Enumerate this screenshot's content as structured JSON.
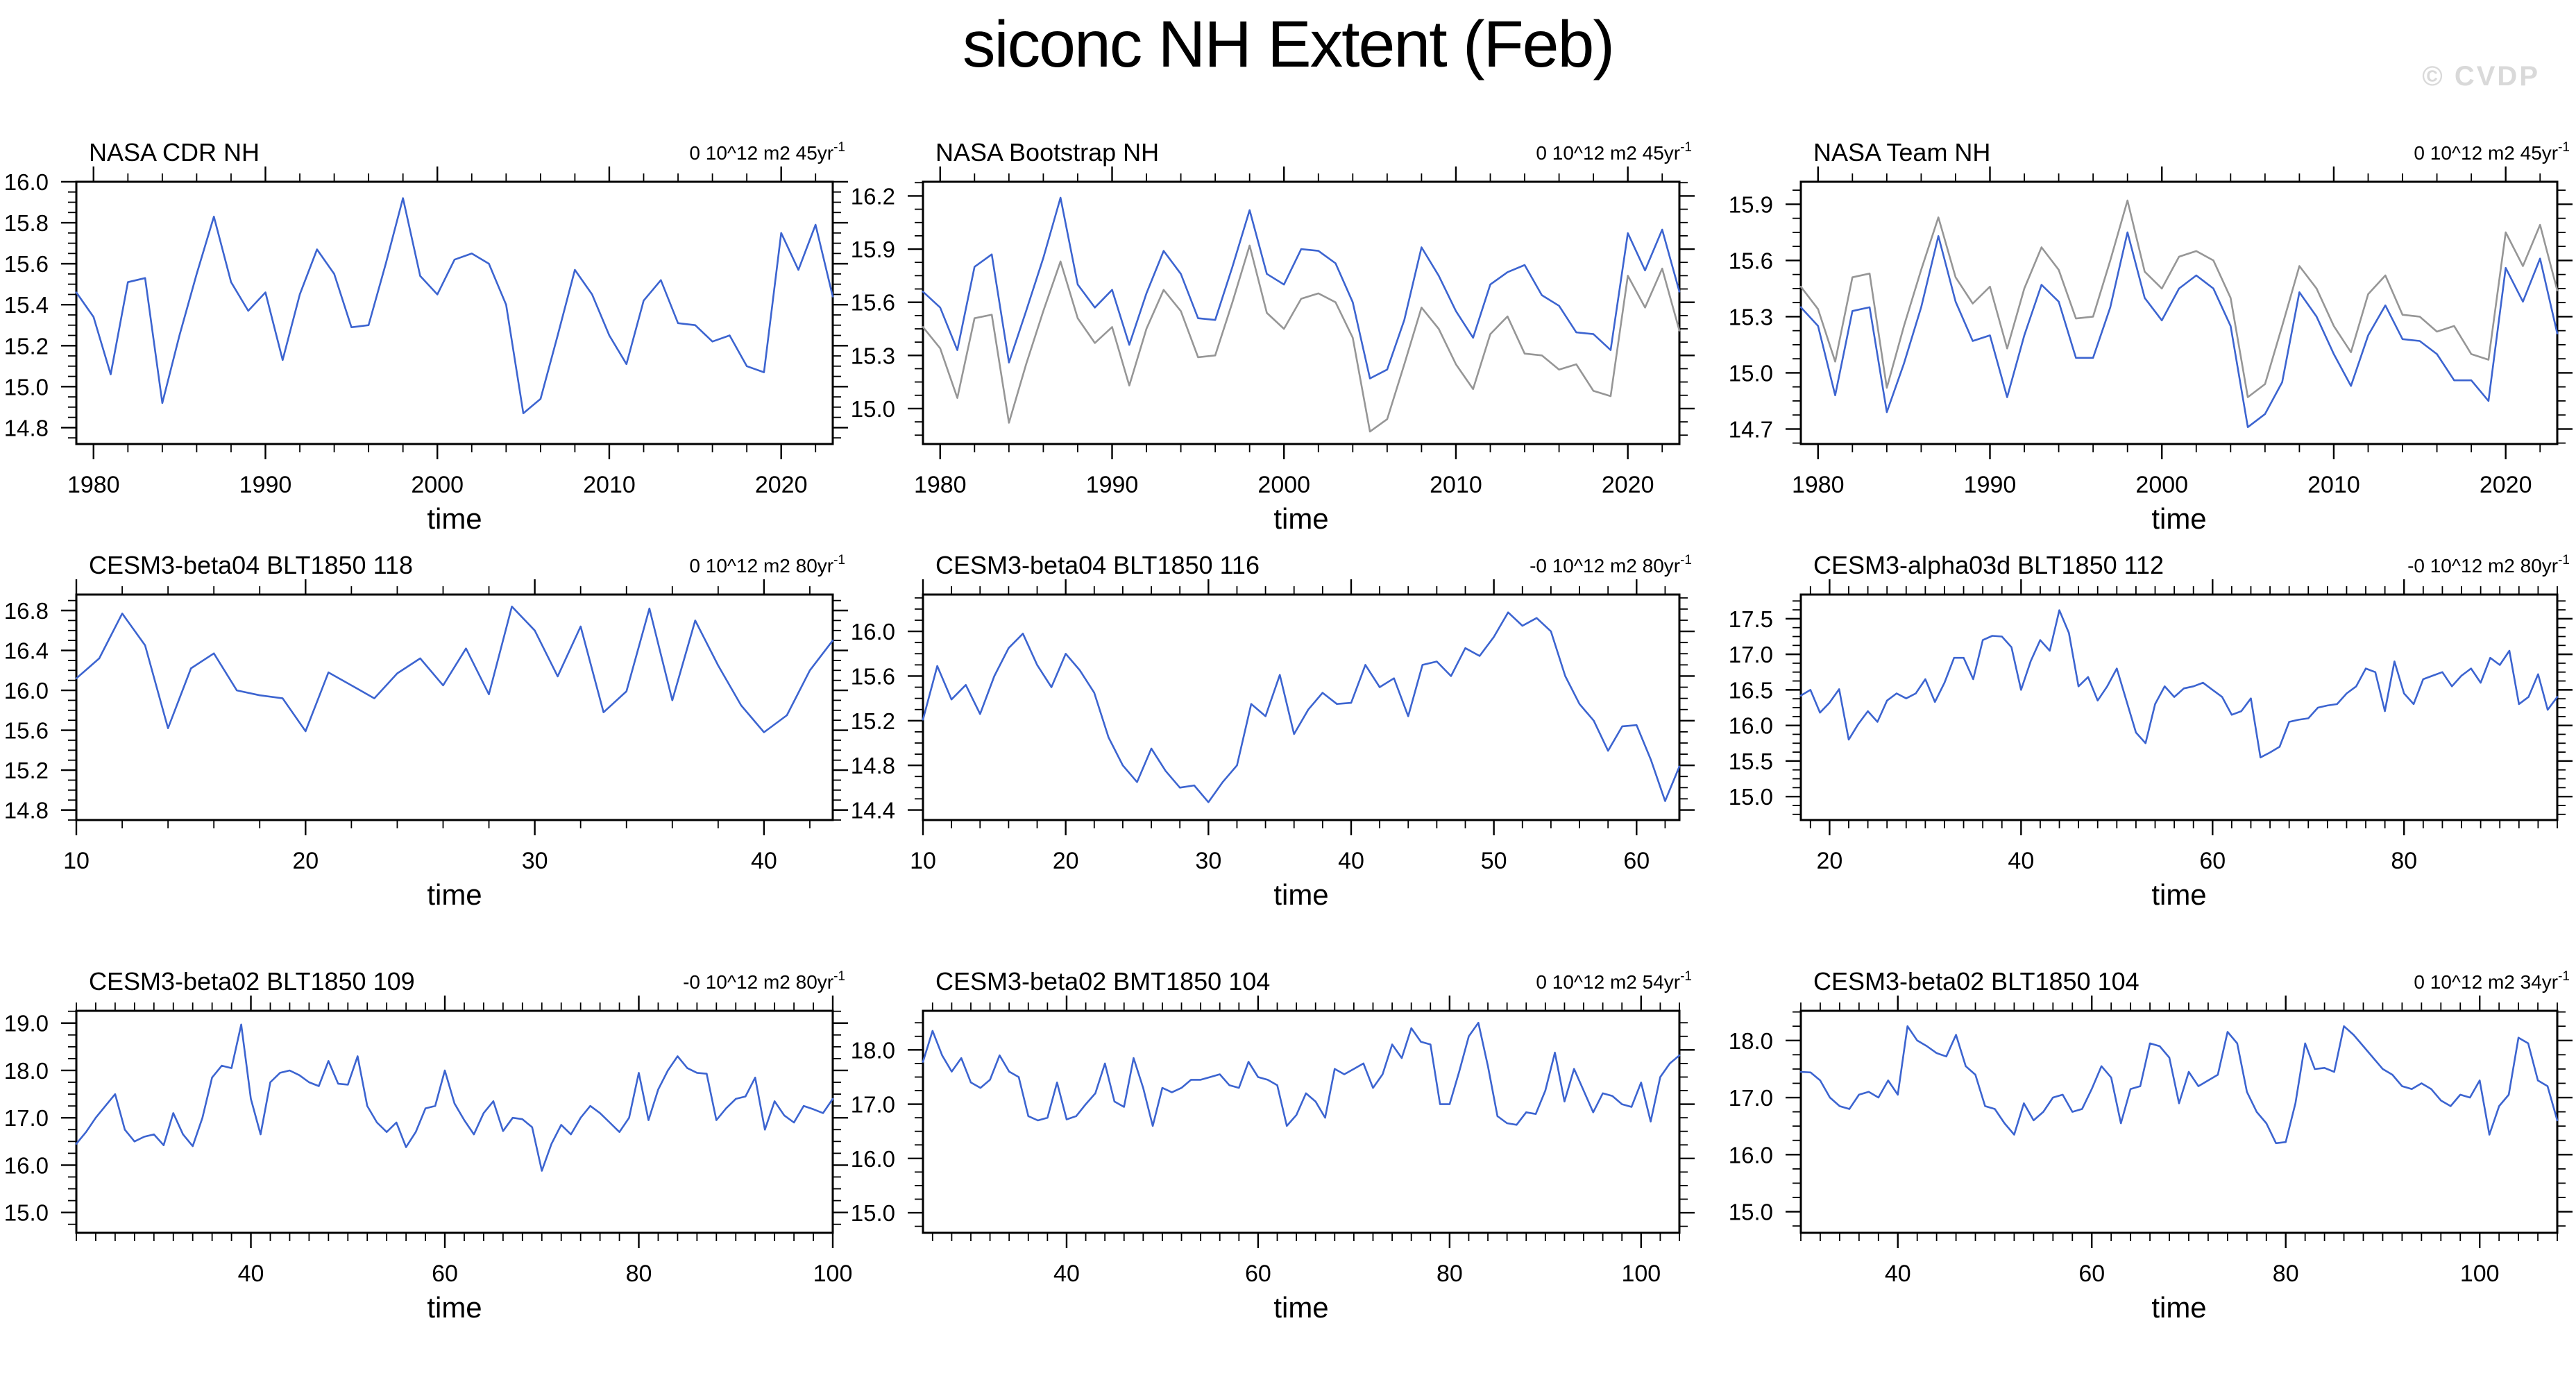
{
  "page": {
    "title": "siconc NH Extent (Feb)",
    "watermark": "© CVDP"
  },
  "colors": {
    "model_line": "#3c64d0",
    "obs_line": "#969696",
    "axis": "#000000",
    "watermark_gray": "#d9d9d9"
  },
  "chart_data": [
    {
      "type": "line",
      "title": "NASA CDR NH",
      "trend": "0 10^12 m2 45yr",
      "trend_exp": "-1",
      "xlabel": "time",
      "xlim": [
        1979,
        2023
      ],
      "xticks": [
        1980,
        1990,
        2000,
        2010,
        2020
      ],
      "x_minor_step": 2,
      "ylim": [
        14.72,
        16.0
      ],
      "yticks": [
        14.8,
        15.0,
        15.2,
        15.4,
        15.6,
        15.8,
        16.0
      ],
      "y_minor_step": 0.05,
      "grid": false,
      "legend": "none",
      "series": [
        {
          "name": "NASA CDR NH",
          "role": "model",
          "x_start": 1979,
          "values": [
            15.46,
            15.34,
            15.06,
            15.51,
            15.53,
            14.92,
            15.25,
            15.55,
            15.83,
            15.51,
            15.37,
            15.46,
            15.13,
            15.45,
            15.67,
            15.55,
            15.29,
            15.3,
            15.6,
            15.92,
            15.54,
            15.45,
            15.62,
            15.65,
            15.6,
            15.4,
            14.87,
            14.94,
            15.25,
            15.57,
            15.45,
            15.25,
            15.11,
            15.42,
            15.52,
            15.31,
            15.3,
            15.22,
            15.25,
            15.1,
            15.07,
            15.75,
            15.57,
            15.79,
            15.44
          ]
        }
      ]
    },
    {
      "type": "line",
      "title": "NASA Bootstrap NH",
      "trend": "0 10^12 m2 45yr",
      "trend_exp": "-1",
      "xlabel": "time",
      "xlim": [
        1979,
        2023
      ],
      "xticks": [
        1980,
        1990,
        2000,
        2010,
        2020
      ],
      "x_minor_step": 2,
      "ylim": [
        14.8,
        16.28
      ],
      "yticks": [
        15.0,
        15.3,
        15.6,
        15.9,
        16.2
      ],
      "y_minor_step": 0.075,
      "grid": false,
      "legend": "none",
      "series": [
        {
          "name": "NASA CDR NH (reference)",
          "role": "reference",
          "x_start": 1979,
          "values": [
            15.46,
            15.34,
            15.06,
            15.51,
            15.53,
            14.92,
            15.25,
            15.55,
            15.83,
            15.51,
            15.37,
            15.46,
            15.13,
            15.45,
            15.67,
            15.55,
            15.29,
            15.3,
            15.6,
            15.92,
            15.54,
            15.45,
            15.62,
            15.65,
            15.6,
            15.4,
            14.87,
            14.94,
            15.25,
            15.57,
            15.45,
            15.25,
            15.11,
            15.42,
            15.52,
            15.31,
            15.3,
            15.22,
            15.25,
            15.1,
            15.07,
            15.75,
            15.57,
            15.79,
            15.44
          ]
        },
        {
          "name": "NASA Bootstrap NH",
          "role": "model",
          "x_start": 1979,
          "values": [
            15.66,
            15.57,
            15.33,
            15.8,
            15.87,
            15.26,
            15.55,
            15.85,
            16.19,
            15.7,
            15.57,
            15.67,
            15.36,
            15.65,
            15.89,
            15.76,
            15.51,
            15.5,
            15.8,
            16.12,
            15.76,
            15.7,
            15.9,
            15.89,
            15.82,
            15.6,
            15.17,
            15.22,
            15.5,
            15.91,
            15.75,
            15.55,
            15.4,
            15.7,
            15.77,
            15.81,
            15.64,
            15.58,
            15.43,
            15.42,
            15.33,
            15.99,
            15.78,
            16.01,
            15.66
          ]
        }
      ]
    },
    {
      "type": "line",
      "title": "NASA Team NH",
      "trend": "0 10^12 m2 45yr",
      "trend_exp": "-1",
      "xlabel": "time",
      "xlim": [
        1979,
        2023
      ],
      "xticks": [
        1980,
        1990,
        2000,
        2010,
        2020
      ],
      "x_minor_step": 2,
      "ylim": [
        14.62,
        16.02
      ],
      "yticks": [
        14.7,
        15.0,
        15.3,
        15.6,
        15.9
      ],
      "y_minor_step": 0.075,
      "grid": false,
      "legend": "none",
      "series": [
        {
          "name": "NASA CDR NH (reference)",
          "role": "reference",
          "x_start": 1979,
          "values": [
            15.46,
            15.34,
            15.06,
            15.51,
            15.53,
            14.92,
            15.25,
            15.55,
            15.83,
            15.51,
            15.37,
            15.46,
            15.13,
            15.45,
            15.67,
            15.55,
            15.29,
            15.3,
            15.6,
            15.92,
            15.54,
            15.45,
            15.62,
            15.65,
            15.6,
            15.4,
            14.87,
            14.94,
            15.25,
            15.57,
            15.45,
            15.25,
            15.11,
            15.42,
            15.52,
            15.31,
            15.3,
            15.22,
            15.25,
            15.1,
            15.07,
            15.75,
            15.57,
            15.79,
            15.44
          ]
        },
        {
          "name": "NASA Team NH",
          "role": "model",
          "x_start": 1979,
          "values": [
            15.35,
            15.25,
            14.88,
            15.33,
            15.35,
            14.79,
            15.05,
            15.35,
            15.73,
            15.38,
            15.17,
            15.2,
            14.87,
            15.2,
            15.47,
            15.38,
            15.08,
            15.08,
            15.35,
            15.75,
            15.4,
            15.28,
            15.45,
            15.52,
            15.45,
            15.25,
            14.71,
            14.78,
            14.95,
            15.43,
            15.3,
            15.1,
            14.93,
            15.2,
            15.36,
            15.18,
            15.17,
            15.1,
            14.96,
            14.96,
            14.85,
            15.56,
            15.38,
            15.61,
            15.21
          ]
        }
      ]
    },
    {
      "type": "line",
      "title": "CESM3-beta04 BLT1850 118",
      "trend": "0 10^12 m2 80yr",
      "trend_exp": "-1",
      "xlabel": "time",
      "xlim": [
        10,
        43
      ],
      "xticks": [
        10,
        20,
        30,
        40
      ],
      "x_minor_step": 2,
      "ylim": [
        14.7,
        16.96
      ],
      "yticks": [
        14.8,
        15.2,
        15.6,
        16.0,
        16.4,
        16.8
      ],
      "y_minor_step": 0.1,
      "grid": false,
      "legend": "none",
      "series": [
        {
          "name": "CESM3-beta04 BLT1850 118",
          "role": "model",
          "x_start": 10,
          "values": [
            16.12,
            16.32,
            16.77,
            16.45,
            15.62,
            16.22,
            16.37,
            16.0,
            15.95,
            15.92,
            15.59,
            16.18,
            16.05,
            15.92,
            16.17,
            16.32,
            16.05,
            16.42,
            15.96,
            16.84,
            16.6,
            16.14,
            16.64,
            15.78,
            15.99,
            16.82,
            15.9,
            16.7,
            16.25,
            15.85,
            15.58,
            15.75,
            16.2,
            16.5
          ]
        }
      ]
    },
    {
      "type": "line",
      "title": "CESM3-beta04 BLT1850 116",
      "trend": "-0 10^12 m2 80yr",
      "trend_exp": "-1",
      "xlabel": "time",
      "xlim": [
        10,
        63
      ],
      "xticks": [
        10,
        20,
        30,
        40,
        50,
        60
      ],
      "x_minor_step": 2,
      "ylim": [
        14.31,
        16.33
      ],
      "yticks": [
        14.4,
        14.8,
        15.2,
        15.6,
        16.0
      ],
      "y_minor_step": 0.1,
      "grid": false,
      "legend": "none",
      "series": [
        {
          "name": "CESM3-beta04 BLT1850 116",
          "role": "model",
          "x_start": 10,
          "values": [
            15.21,
            15.69,
            15.39,
            15.52,
            15.26,
            15.6,
            15.85,
            15.98,
            15.7,
            15.5,
            15.8,
            15.65,
            15.45,
            15.05,
            14.8,
            14.65,
            14.95,
            14.75,
            14.6,
            14.62,
            14.47,
            14.65,
            14.8,
            15.35,
            15.24,
            15.61,
            15.08,
            15.3,
            15.45,
            15.35,
            15.36,
            15.7,
            15.5,
            15.58,
            15.24,
            15.7,
            15.73,
            15.6,
            15.85,
            15.78,
            15.95,
            16.17,
            16.05,
            16.12,
            16.0,
            15.6,
            15.35,
            15.2,
            14.93,
            15.15,
            15.16,
            14.85,
            14.48,
            14.79
          ]
        }
      ]
    },
    {
      "type": "line",
      "title": "CESM3-alpha03d BLT1850 112",
      "trend": "-0 10^12 m2 80yr",
      "trend_exp": "-1",
      "xlabel": "time",
      "xlim": [
        17,
        96
      ],
      "xticks": [
        20,
        40,
        60,
        80
      ],
      "x_minor_step": 2,
      "ylim": [
        14.67,
        17.84
      ],
      "yticks": [
        15.0,
        15.5,
        16.0,
        16.5,
        17.0,
        17.5
      ],
      "y_minor_step": 0.125,
      "grid": false,
      "legend": "none",
      "series": [
        {
          "name": "CESM3-alpha03d BLT1850 112",
          "role": "model",
          "x_start": 17,
          "values": [
            16.42,
            16.5,
            16.18,
            16.32,
            16.51,
            15.8,
            16.02,
            16.2,
            16.05,
            16.35,
            16.45,
            16.38,
            16.45,
            16.65,
            16.33,
            16.6,
            16.95,
            16.95,
            16.65,
            17.2,
            17.26,
            17.25,
            17.1,
            16.5,
            16.9,
            17.2,
            17.05,
            17.62,
            17.3,
            16.55,
            16.68,
            16.35,
            16.55,
            16.8,
            16.35,
            15.9,
            15.75,
            16.3,
            16.55,
            16.4,
            16.52,
            16.55,
            16.6,
            16.5,
            16.4,
            16.15,
            16.2,
            16.38,
            15.55,
            15.62,
            15.7,
            16.05,
            16.08,
            16.1,
            16.25,
            16.28,
            16.3,
            16.45,
            16.55,
            16.8,
            16.75,
            16.2,
            16.9,
            16.45,
            16.3,
            16.65,
            16.7,
            16.75,
            16.55,
            16.7,
            16.8,
            16.6,
            16.95,
            16.85,
            17.05,
            16.3,
            16.4,
            16.72,
            16.22,
            16.4
          ]
        }
      ]
    },
    {
      "type": "line",
      "title": "CESM3-beta02 BLT1850 109",
      "trend": "-0 10^12 m2 80yr",
      "trend_exp": "-1",
      "xlabel": "time",
      "xlim": [
        22,
        100
      ],
      "xticks": [
        40,
        60,
        80,
        100
      ],
      "x_minor_step": 2,
      "ylim": [
        14.57,
        19.26
      ],
      "yticks": [
        15.0,
        16.0,
        17.0,
        18.0,
        19.0
      ],
      "y_minor_step": 0.25,
      "grid": false,
      "legend": "none",
      "series": [
        {
          "name": "CESM3-beta02 BLT1850 109",
          "role": "model",
          "x_start": 22,
          "values": [
            16.45,
            16.7,
            17.0,
            17.25,
            17.5,
            16.75,
            16.5,
            16.6,
            16.65,
            16.42,
            17.1,
            16.65,
            16.4,
            17.0,
            17.85,
            18.1,
            18.05,
            18.97,
            17.4,
            16.65,
            17.75,
            17.95,
            18.0,
            17.9,
            17.75,
            17.67,
            18.2,
            17.72,
            17.7,
            18.3,
            17.25,
            16.9,
            16.7,
            16.9,
            16.38,
            16.7,
            17.2,
            17.25,
            18.0,
            17.3,
            16.95,
            16.65,
            17.1,
            17.35,
            16.72,
            17.0,
            16.97,
            16.8,
            15.88,
            16.45,
            16.85,
            16.65,
            17.0,
            17.25,
            17.1,
            16.9,
            16.7,
            17.0,
            17.95,
            16.95,
            17.6,
            18.0,
            18.3,
            18.05,
            17.95,
            17.93,
            16.95,
            17.2,
            17.4,
            17.45,
            17.85,
            16.75,
            17.35,
            17.05,
            16.9,
            17.25,
            17.18,
            17.1,
            17.4
          ]
        }
      ]
    },
    {
      "type": "line",
      "title": "CESM3-beta02 BMT1850 104",
      "trend": "0 10^12 m2 54yr",
      "trend_exp": "-1",
      "xlabel": "time",
      "xlim": [
        25,
        104
      ],
      "xticks": [
        40,
        60,
        80,
        100
      ],
      "x_minor_step": 2,
      "ylim": [
        14.63,
        18.72
      ],
      "yticks": [
        15.0,
        16.0,
        17.0,
        18.0
      ],
      "y_minor_step": 0.25,
      "grid": false,
      "legend": "none",
      "series": [
        {
          "name": "CESM3-beta02 BMT1850 104",
          "role": "model",
          "x_start": 25,
          "values": [
            17.78,
            18.35,
            17.9,
            17.6,
            17.85,
            17.4,
            17.3,
            17.45,
            17.9,
            17.6,
            17.5,
            16.78,
            16.7,
            16.75,
            17.4,
            16.72,
            16.78,
            17.0,
            17.2,
            17.75,
            17.05,
            16.95,
            17.85,
            17.3,
            16.6,
            17.3,
            17.22,
            17.3,
            17.45,
            17.45,
            17.5,
            17.55,
            17.35,
            17.3,
            17.78,
            17.5,
            17.45,
            17.35,
            16.6,
            16.8,
            17.2,
            17.05,
            16.75,
            17.65,
            17.55,
            17.65,
            17.75,
            17.3,
            17.55,
            18.1,
            17.85,
            18.4,
            18.15,
            18.1,
            17.0,
            17.0,
            17.6,
            18.25,
            18.5,
            17.7,
            16.78,
            16.65,
            16.62,
            16.85,
            16.82,
            17.25,
            17.95,
            17.05,
            17.65,
            17.25,
            16.85,
            17.2,
            17.15,
            17.0,
            16.95,
            17.4,
            16.68,
            17.5,
            17.75,
            17.9
          ]
        }
      ]
    },
    {
      "type": "line",
      "title": "CESM3-beta02 BLT1850 104",
      "trend": "0 10^12 m2 34yr",
      "trend_exp": "-1",
      "xlabel": "time",
      "xlim": [
        30,
        108
      ],
      "xticks": [
        40,
        60,
        80,
        100
      ],
      "x_minor_step": 2,
      "ylim": [
        14.63,
        18.52
      ],
      "yticks": [
        15.0,
        16.0,
        17.0,
        18.0
      ],
      "y_minor_step": 0.25,
      "grid": false,
      "legend": "none",
      "series": [
        {
          "name": "CESM3-beta02 BLT1850 104",
          "role": "model",
          "x_start": 30,
          "values": [
            17.45,
            17.44,
            17.3,
            17.0,
            16.85,
            16.8,
            17.05,
            17.1,
            17.0,
            17.3,
            17.05,
            18.25,
            18.0,
            17.9,
            17.78,
            17.72,
            18.1,
            17.55,
            17.4,
            16.85,
            16.8,
            16.55,
            16.35,
            16.9,
            16.6,
            16.75,
            17.0,
            17.05,
            16.75,
            16.8,
            17.15,
            17.55,
            17.35,
            16.55,
            17.15,
            17.2,
            17.95,
            17.9,
            17.7,
            16.9,
            17.45,
            17.2,
            17.3,
            17.4,
            18.15,
            17.95,
            17.1,
            16.75,
            16.55,
            16.2,
            16.22,
            16.9,
            17.95,
            17.5,
            17.52,
            17.45,
            18.25,
            18.1,
            17.9,
            17.7,
            17.5,
            17.4,
            17.2,
            17.15,
            17.25,
            17.15,
            16.95,
            16.85,
            17.05,
            17.0,
            17.3,
            16.35,
            16.85,
            17.05,
            18.05,
            17.95,
            17.3,
            17.2,
            16.6
          ]
        }
      ]
    }
  ]
}
